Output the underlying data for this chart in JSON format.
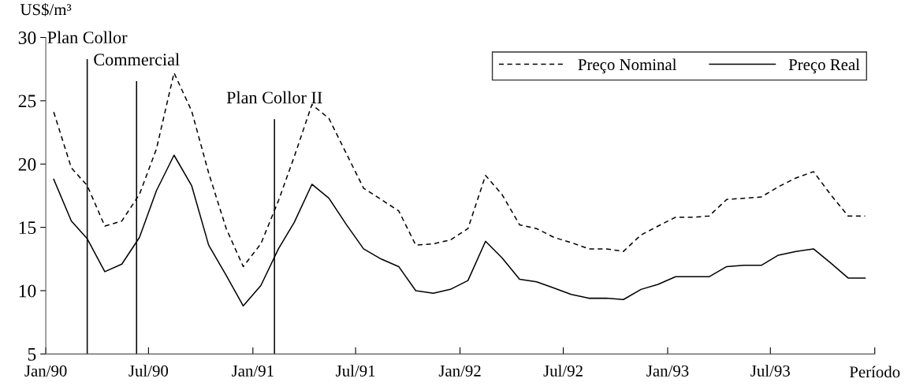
{
  "chart_data": {
    "type": "line",
    "ylabel": "US$/m³",
    "xlabel": "Período",
    "x": [
      "1990-01-15",
      "1990-02-15",
      "1990-03-15",
      "1990-04-15",
      "1990-05-15",
      "1990-06-15",
      "1990-07-15",
      "1990-08-15",
      "1990-09-15",
      "1990-10-15",
      "1990-11-15",
      "1990-12-15",
      "1991-01-15",
      "1991-02-15",
      "1991-03-15",
      "1991-04-15",
      "1991-05-15",
      "1991-06-15",
      "1991-07-15",
      "1991-08-15",
      "1991-09-15",
      "1991-10-15",
      "1991-11-15",
      "1991-12-15",
      "1992-01-15",
      "1992-02-15",
      "1992-03-15",
      "1992-04-15",
      "1992-05-15",
      "1992-06-15",
      "1992-07-15",
      "1992-08-15",
      "1992-09-15",
      "1992-10-15",
      "1992-11-15",
      "1992-12-15",
      "1993-01-15",
      "1993-02-15",
      "1993-03-15",
      "1993-04-15",
      "1993-05-15",
      "1993-06-15",
      "1993-07-15",
      "1993-08-15",
      "1993-09-15",
      "1993-10-15",
      "1993-11-15",
      "1993-12-15"
    ],
    "series": [
      {
        "name": "Preço Nominal",
        "color": "#000000",
        "line_style": "dashed",
        "values": [
          24.1,
          19.7,
          18.3,
          15.1,
          15.5,
          17.6,
          21.2,
          27.2,
          24.2,
          19.3,
          14.9,
          11.9,
          13.7,
          17.1,
          20.6,
          24.7,
          23.6,
          20.8,
          18.1,
          17.2,
          16.3,
          13.6,
          13.7,
          14.0,
          14.9,
          19.1,
          17.6,
          15.2,
          14.9,
          14.2,
          13.8,
          13.3,
          13.3,
          13.1,
          14.4,
          15.1,
          15.8,
          15.8,
          15.9,
          17.2,
          17.3,
          17.4,
          18.2,
          18.9,
          19.4,
          17.6,
          15.9,
          15.9
        ]
      },
      {
        "name": "Preço Real",
        "color": "#000000",
        "line_style": "solid",
        "values": [
          18.8,
          15.5,
          14.1,
          11.5,
          12.1,
          14.2,
          17.9,
          20.7,
          18.3,
          13.6,
          11.2,
          8.8,
          10.4,
          13.3,
          15.4,
          18.4,
          17.3,
          15.2,
          13.3,
          12.5,
          11.9,
          10.0,
          9.8,
          10.1,
          10.8,
          13.9,
          12.6,
          10.9,
          10.7,
          10.2,
          9.7,
          9.4,
          9.4,
          9.3,
          10.1,
          10.5,
          11.1,
          11.1,
          11.1,
          11.9,
          12.0,
          12.0,
          12.8,
          13.1,
          13.3,
          12.2,
          11.0,
          11.0
        ]
      }
    ],
    "xlim": [
      "1990-01-01",
      "1994-01-01"
    ],
    "xticks": [
      {
        "value": "1990-01-01",
        "label": "Jan/90"
      },
      {
        "value": "1990-07-01",
        "label": "Jul/90"
      },
      {
        "value": "1991-01-01",
        "label": "Jan/91"
      },
      {
        "value": "1991-07-01",
        "label": "Jul/91"
      },
      {
        "value": "1992-01-01",
        "label": "Jan/92"
      },
      {
        "value": "1992-07-01",
        "label": "Jul/92"
      },
      {
        "value": "1993-01-01",
        "label": "Jan/93"
      },
      {
        "value": "1993-07-01",
        "label": "Jul/93"
      },
      {
        "value": "1994-01-01",
        "label": null
      }
    ],
    "ylim": [
      5,
      30
    ],
    "yticks": [
      5,
      10,
      15,
      20,
      25,
      30
    ],
    "ref_lines": [
      {
        "axis": "x",
        "value": "1990-03-15",
        "label": "Plan Collor",
        "color": "#000000"
      },
      {
        "axis": "x",
        "value": "1990-06-10",
        "label": "Commercial",
        "color": "#000000"
      },
      {
        "axis": "x",
        "value": "1991-02-08",
        "label": "Plan Collor II",
        "color": "#000000"
      }
    ],
    "grid": false,
    "legend": "top right",
    "marker": "none"
  }
}
